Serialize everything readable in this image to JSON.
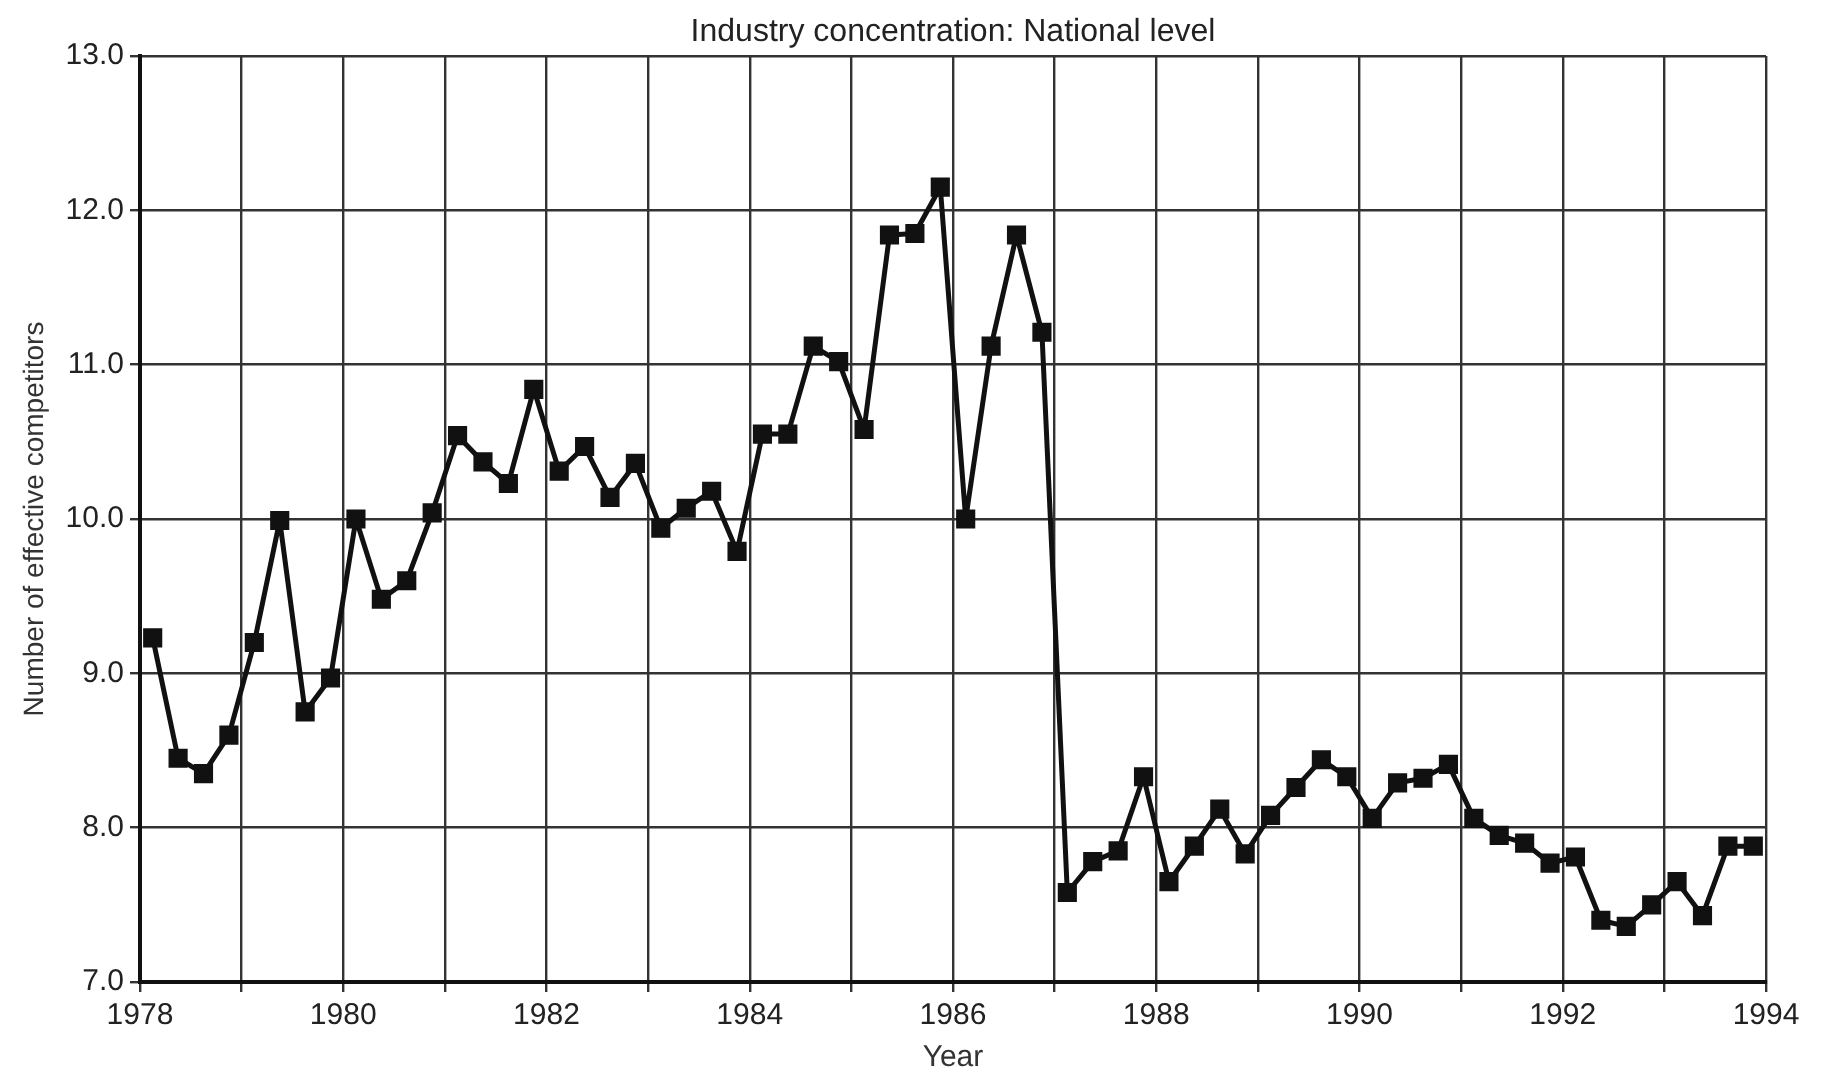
{
  "chart_data": {
    "type": "line",
    "title": "Industry concentration: National level",
    "xlabel": "Year",
    "ylabel": "Number of effective competitors",
    "x": [
      1978.125,
      1978.375,
      1978.625,
      1978.875,
      1979.125,
      1979.375,
      1979.625,
      1979.875,
      1980.125,
      1980.375,
      1980.625,
      1980.875,
      1981.125,
      1981.375,
      1981.625,
      1981.875,
      1982.125,
      1982.375,
      1982.625,
      1982.875,
      1983.125,
      1983.375,
      1983.625,
      1983.875,
      1984.125,
      1984.375,
      1984.625,
      1984.875,
      1985.125,
      1985.375,
      1985.625,
      1985.875,
      1986.125,
      1986.375,
      1986.625,
      1986.875,
      1987.125,
      1987.375,
      1987.625,
      1987.875,
      1988.125,
      1988.375,
      1988.625,
      1988.875,
      1989.125,
      1989.375,
      1989.625,
      1989.875,
      1990.125,
      1990.375,
      1990.625,
      1990.875,
      1991.125,
      1991.375,
      1991.625,
      1991.875,
      1992.125,
      1992.375,
      1992.625,
      1992.875,
      1993.125,
      1993.375,
      1993.625,
      1993.875
    ],
    "series": [
      {
        "color": "#111111",
        "values": [
          9.23,
          8.45,
          8.35,
          8.6,
          9.2,
          9.99,
          8.75,
          8.97,
          10.0,
          9.48,
          9.6,
          10.04,
          10.54,
          10.37,
          10.23,
          10.84,
          10.31,
          10.47,
          10.14,
          10.36,
          9.94,
          10.07,
          10.18,
          9.79,
          10.55,
          10.55,
          11.12,
          11.02,
          10.58,
          11.84,
          11.85,
          12.15,
          10.0,
          11.12,
          11.84,
          11.21,
          7.58,
          7.78,
          7.85,
          8.33,
          7.65,
          7.88,
          8.12,
          7.83,
          8.08,
          8.26,
          8.44,
          8.33,
          8.06,
          8.29,
          8.32,
          8.41,
          8.06,
          7.95,
          7.9,
          7.77,
          7.81,
          7.4,
          7.36,
          7.5,
          7.65,
          7.43,
          7.88,
          7.88
        ]
      }
    ],
    "xlim": [
      1978,
      1994
    ],
    "xticks": [
      1978,
      {
        "value": 1979,
        "label": null
      },
      1980,
      {
        "value": 1981,
        "label": null
      },
      1982,
      {
        "value": 1983,
        "label": null
      },
      1984,
      {
        "value": 1985,
        "label": null
      },
      1986,
      {
        "value": 1987,
        "label": null
      },
      1988,
      {
        "value": 1989,
        "label": null
      },
      1990,
      {
        "value": 1991,
        "label": null
      },
      1992,
      {
        "value": 1993,
        "label": null
      },
      1994
    ],
    "ylim": [
      7,
      13
    ],
    "yticks": [
      {
        "value": 7,
        "label": "7.0"
      },
      {
        "value": 8,
        "label": "8.0"
      },
      {
        "value": 9,
        "label": "9.0"
      },
      {
        "value": 10,
        "label": "10.0"
      },
      {
        "value": 11,
        "label": "11.0"
      },
      {
        "value": 12,
        "label": "12.0"
      },
      {
        "value": 13,
        "label": "13.0"
      }
    ],
    "grid": true,
    "legend": false,
    "marker": "square",
    "line_style": "solid"
  }
}
